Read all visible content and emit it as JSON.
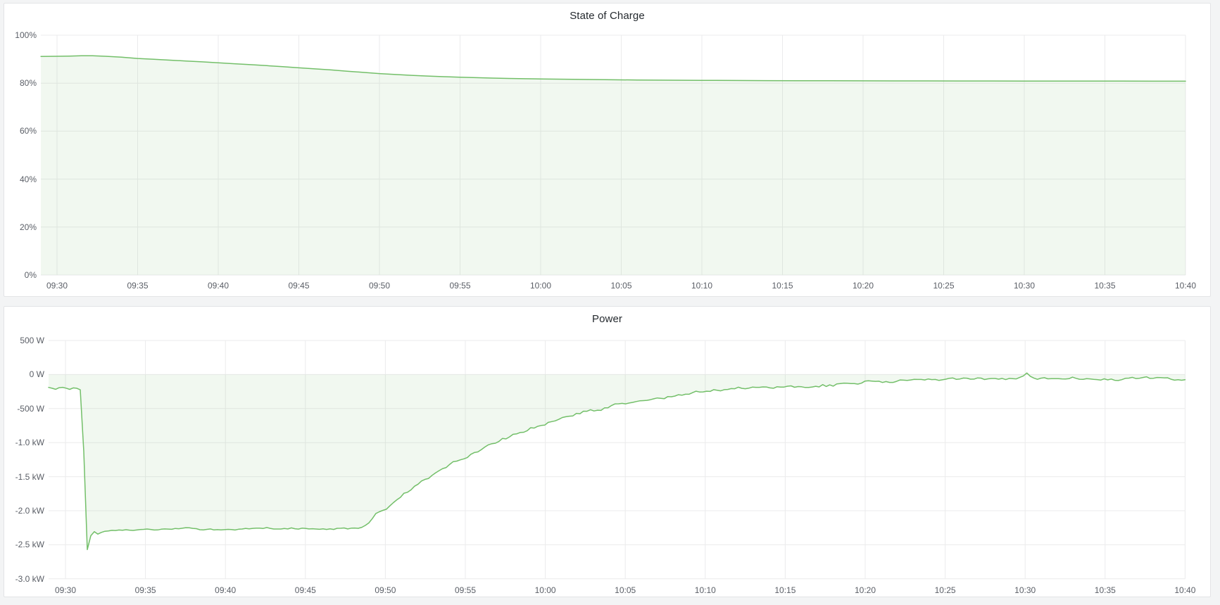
{
  "page": {
    "background": "#f3f4f5"
  },
  "accent_color": "#73bf69",
  "chart_data": [
    {
      "type": "area",
      "title": "State of Charge",
      "xlabel": "time",
      "ylabel": "%",
      "ylim": [
        0,
        100
      ],
      "grid": true,
      "legend": "none",
      "x_start": "09:30",
      "x_end": "10:40",
      "x_tick_interval_min": 5,
      "x_tick_labels": [
        "09:30",
        "09:35",
        "09:40",
        "09:45",
        "09:50",
        "09:55",
        "10:00",
        "10:05",
        "10:10",
        "10:15",
        "10:20",
        "10:25",
        "10:30",
        "10:35",
        "10:40"
      ],
      "y_tick_labels": [
        "100%",
        "80%",
        "60%",
        "40%",
        "20%",
        "0%"
      ],
      "y_tick_values": [
        100,
        80,
        60,
        40,
        20,
        0
      ],
      "line_color": "#73bf69",
      "fill_color": "rgba(115,191,105,0.10)",
      "series": [
        {
          "name": "State of Charge",
          "unit": "percent",
          "points_min_pct": [
            [
              -1,
              91.15
            ],
            [
              0,
              91.2
            ],
            [
              0.8,
              91.3
            ],
            [
              1.5,
              91.45
            ],
            [
              2.2,
              91.4
            ],
            [
              3,
              91.2
            ],
            [
              4,
              90.85
            ],
            [
              5,
              90.3
            ],
            [
              6,
              89.95
            ],
            [
              7,
              89.6
            ],
            [
              8,
              89.25
            ],
            [
              9,
              88.9
            ],
            [
              10,
              88.5
            ],
            [
              11,
              88.1
            ],
            [
              12,
              87.7
            ],
            [
              13,
              87.3
            ],
            [
              14,
              86.85
            ],
            [
              15,
              86.4
            ],
            [
              16,
              85.95
            ],
            [
              17,
              85.5
            ],
            [
              18,
              85.0
            ],
            [
              19,
              84.5
            ],
            [
              20,
              84.0
            ],
            [
              21,
              83.6
            ],
            [
              22,
              83.25
            ],
            [
              23,
              82.95
            ],
            [
              24,
              82.7
            ],
            [
              25,
              82.5
            ],
            [
              26,
              82.3
            ],
            [
              27,
              82.12
            ],
            [
              28,
              81.97
            ],
            [
              29,
              81.85
            ],
            [
              30,
              81.75
            ],
            [
              32,
              81.58
            ],
            [
              34,
              81.45
            ],
            [
              36,
              81.33
            ],
            [
              38,
              81.24
            ],
            [
              40,
              81.17
            ],
            [
              42,
              81.12
            ],
            [
              44,
              81.07
            ],
            [
              46,
              81.03
            ],
            [
              48,
              81.0
            ],
            [
              50,
              80.97
            ],
            [
              52,
              80.95
            ],
            [
              54,
              80.93
            ],
            [
              56,
              80.91
            ],
            [
              58,
              80.9
            ],
            [
              60,
              80.88
            ],
            [
              62,
              80.87
            ],
            [
              64,
              80.86
            ],
            [
              66,
              80.85
            ],
            [
              68,
              80.83
            ],
            [
              70,
              80.82
            ]
          ]
        }
      ]
    },
    {
      "type": "area",
      "title": "Power",
      "xlabel": "time",
      "ylabel": "W",
      "ylim": [
        -3000,
        500
      ],
      "grid": true,
      "legend": "none",
      "x_start": "09:30",
      "x_end": "10:40",
      "x_tick_interval_min": 5,
      "x_tick_labels": [
        "09:30",
        "09:35",
        "09:40",
        "09:45",
        "09:50",
        "09:55",
        "10:00",
        "10:05",
        "10:10",
        "10:15",
        "10:20",
        "10:25",
        "10:30",
        "10:35",
        "10:40"
      ],
      "y_tick_labels": [
        "500 W",
        "0 W",
        "-500 W",
        "-1.0 kW",
        "-1.5 kW",
        "-2.0 kW",
        "-2.5 kW",
        "-3.0 kW"
      ],
      "y_tick_values": [
        500,
        0,
        -500,
        -1000,
        -1500,
        -2000,
        -2500,
        -3000
      ],
      "line_color": "#73bf69",
      "fill_color": "rgba(115,191,105,0.10)",
      "series": [
        {
          "name": "Power",
          "unit": "watt",
          "points_min_w": [
            [
              -1.05,
              -185
            ],
            [
              -0.6,
              -210
            ],
            [
              -0.2,
              -180
            ],
            [
              0.2,
              -215
            ],
            [
              0.6,
              -195
            ],
            [
              0.9,
              -230
            ],
            [
              1.0,
              -195
            ],
            [
              1.08,
              -240
            ],
            [
              1.12,
              -700
            ],
            [
              1.18,
              -1800
            ],
            [
              1.25,
              -2480
            ],
            [
              1.32,
              -2620
            ],
            [
              1.42,
              -2500
            ],
            [
              1.5,
              -2400
            ],
            [
              1.62,
              -2345
            ],
            [
              1.8,
              -2310
            ],
            [
              2.0,
              -2350
            ],
            [
              2.3,
              -2320
            ],
            [
              2.8,
              -2305
            ],
            [
              3.5,
              -2295
            ],
            [
              4.5,
              -2285
            ],
            [
              6,
              -2275
            ],
            [
              8,
              -2270
            ],
            [
              10,
              -2268
            ],
            [
              12,
              -2266
            ],
            [
              14,
              -2266
            ],
            [
              16,
              -2264
            ],
            [
              17.5,
              -2263
            ],
            [
              18.4,
              -2262
            ],
            [
              18.9,
              -2180
            ],
            [
              19.4,
              -2060
            ],
            [
              20,
              -1970
            ],
            [
              20.6,
              -1865
            ],
            [
              21.2,
              -1760
            ],
            [
              22,
              -1630
            ],
            [
              22.8,
              -1510
            ],
            [
              23.6,
              -1390
            ],
            [
              24.4,
              -1290
            ],
            [
              25.2,
              -1190
            ],
            [
              26,
              -1100
            ],
            [
              26.8,
              -1010
            ],
            [
              27.6,
              -930
            ],
            [
              28.4,
              -855
            ],
            [
              29.2,
              -790
            ],
            [
              30,
              -725
            ],
            [
              30.8,
              -665
            ],
            [
              31.6,
              -610
            ],
            [
              32.4,
              -560
            ],
            [
              33.2,
              -515
            ],
            [
              34,
              -470
            ],
            [
              34.8,
              -435
            ],
            [
              35.6,
              -400
            ],
            [
              36.4,
              -370
            ],
            [
              37.2,
              -340
            ],
            [
              38,
              -315
            ],
            [
              39,
              -285
            ],
            [
              40,
              -260
            ],
            [
              41,
              -240
            ],
            [
              42,
              -222
            ],
            [
              43,
              -207
            ],
            [
              44,
              -192
            ],
            [
              45,
              -178
            ],
            [
              46,
              -165
            ],
            [
              47,
              -152
            ],
            [
              48,
              -142
            ],
            [
              49,
              -132
            ],
            [
              50,
              -112
            ],
            [
              51,
              -96
            ],
            [
              52,
              -88
            ],
            [
              53,
              -82
            ],
            [
              54,
              -78
            ],
            [
              55,
              -72
            ],
            [
              56,
              -70
            ],
            [
              57,
              -66
            ],
            [
              58,
              -62
            ],
            [
              59,
              -58
            ],
            [
              59.8,
              -40
            ],
            [
              60.1,
              35
            ],
            [
              60.4,
              -45
            ],
            [
              61,
              -58
            ],
            [
              62,
              -62
            ],
            [
              63,
              -55
            ],
            [
              64,
              -62
            ],
            [
              65,
              -55
            ],
            [
              66,
              -60
            ],
            [
              67,
              -55
            ],
            [
              68,
              -58
            ],
            [
              69,
              -52
            ],
            [
              70,
              -75
            ]
          ],
          "noise": {
            "seed": 13,
            "step_min": 0.22,
            "segments_tmax_amp": [
              [
                1.05,
                15
              ],
              [
                1.8,
                8
              ],
              [
                18.4,
                16
              ],
              [
                50,
                30
              ],
              [
                70.1,
                26
              ]
            ]
          }
        }
      ]
    }
  ]
}
